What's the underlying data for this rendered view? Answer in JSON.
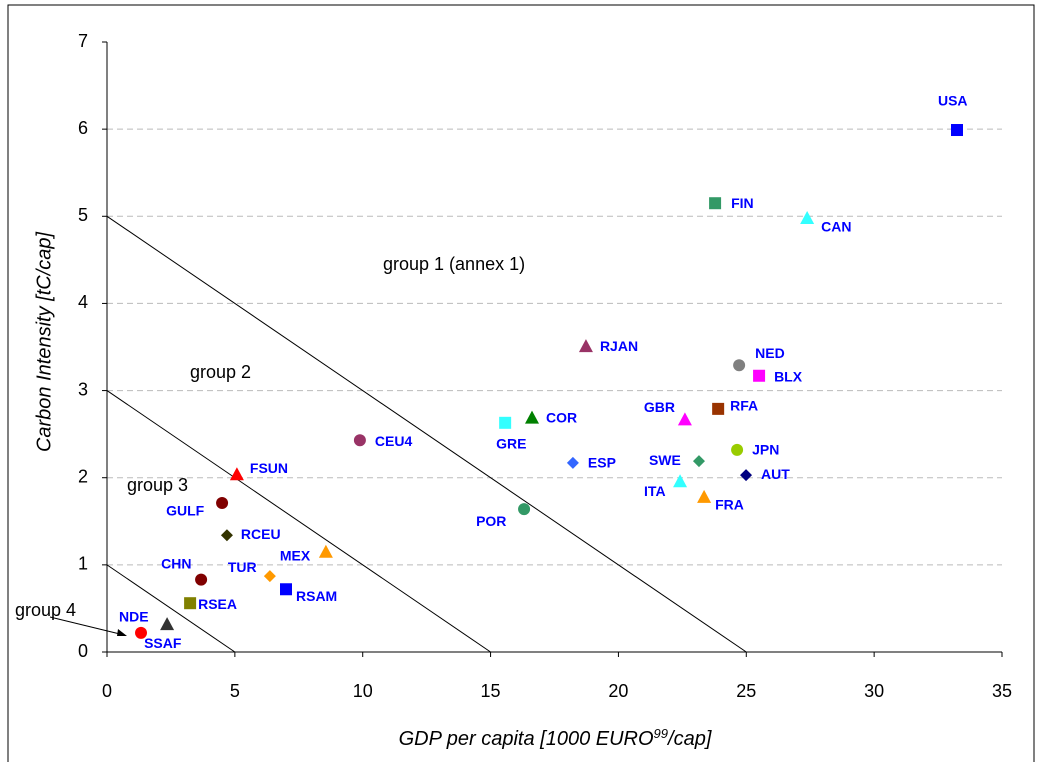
{
  "chart_data": {
    "type": "scatter",
    "ylabel": "Carbon Intensity [tC/cap]",
    "xlabel": [
      "GDP per capita [1000 EURO",
      "99",
      "/cap]"
    ],
    "xlim": [
      0,
      35
    ],
    "xticks": [
      0,
      5,
      10,
      15,
      20,
      25,
      30,
      35
    ],
    "ylim": [
      0,
      7
    ],
    "yticks": [
      0,
      1,
      2,
      3,
      4,
      5,
      6,
      7
    ],
    "grid": true,
    "annotations": [
      "group 1 (annex 1)",
      "group 2",
      "group 3",
      "group 4"
    ],
    "boundary_lines": [
      {
        "x": [
          0,
          25
        ],
        "y": [
          5,
          0
        ]
      },
      {
        "x": [
          0,
          15
        ],
        "y": [
          3,
          0
        ]
      },
      {
        "x": [
          0,
          5
        ],
        "y": [
          1,
          0
        ]
      }
    ],
    "points": [
      {
        "name": "USA",
        "x": 33.24,
        "y": 5.99,
        "marker": "square",
        "color": "#0000ff"
      },
      {
        "name": "FIN",
        "x": 23.78,
        "y": 5.15,
        "marker": "square",
        "color": "#339966"
      },
      {
        "name": "CAN",
        "x": 27.38,
        "y": 4.98,
        "marker": "triangle",
        "color": "#33ffff"
      },
      {
        "name": "RJAN",
        "x": 18.73,
        "y": 3.51,
        "marker": "triangle",
        "color": "#993366"
      },
      {
        "name": "NED",
        "x": 24.72,
        "y": 3.29,
        "marker": "circle",
        "color": "#808080"
      },
      {
        "name": "BLX",
        "x": 25.5,
        "y": 3.17,
        "marker": "square",
        "color": "#ff00ff"
      },
      {
        "name": "RFA",
        "x": 23.9,
        "y": 2.79,
        "marker": "square",
        "color": "#993300"
      },
      {
        "name": "GBR",
        "x": 22.6,
        "y": 2.67,
        "marker": "triangle",
        "color": "#ff00ff"
      },
      {
        "name": "COR",
        "x": 16.62,
        "y": 2.69,
        "marker": "triangle",
        "color": "#008000"
      },
      {
        "name": "GRE",
        "x": 15.57,
        "y": 2.63,
        "marker": "square",
        "color": "#33ffff"
      },
      {
        "name": "CEU4",
        "x": 9.89,
        "y": 2.43,
        "marker": "circle",
        "color": "#993366"
      },
      {
        "name": "ESP",
        "x": 18.22,
        "y": 2.17,
        "marker": "diamond",
        "color": "#3366ff"
      },
      {
        "name": "SWE",
        "x": 23.15,
        "y": 2.19,
        "marker": "diamond",
        "color": "#339966"
      },
      {
        "name": "JPN",
        "x": 24.64,
        "y": 2.32,
        "marker": "circle",
        "color": "#99cc00"
      },
      {
        "name": "AUT",
        "x": 24.99,
        "y": 2.03,
        "marker": "diamond",
        "color": "#000080"
      },
      {
        "name": "ITA",
        "x": 22.41,
        "y": 1.96,
        "marker": "triangle",
        "color": "#33ffff"
      },
      {
        "name": "FRA",
        "x": 23.35,
        "y": 1.78,
        "marker": "triangle",
        "color": "#ff9900"
      },
      {
        "name": "FSUN",
        "x": 5.08,
        "y": 2.04,
        "marker": "triangle",
        "color": "#ff0000"
      },
      {
        "name": "GULF",
        "x": 4.5,
        "y": 1.71,
        "marker": "circle",
        "color": "#800000"
      },
      {
        "name": "POR",
        "x": 16.31,
        "y": 1.64,
        "marker": "circle",
        "color": "#339966"
      },
      {
        "name": "RCEU",
        "x": 4.69,
        "y": 1.34,
        "marker": "diamond",
        "color": "#333300"
      },
      {
        "name": "MEX",
        "x": 8.56,
        "y": 1.15,
        "marker": "triangle",
        "color": "#ff9900"
      },
      {
        "name": "CHN",
        "x": 3.68,
        "y": 0.83,
        "marker": "circle",
        "color": "#800000"
      },
      {
        "name": "TUR",
        "x": 6.37,
        "y": 0.87,
        "marker": "diamond",
        "color": "#ff9900"
      },
      {
        "name": "RSAM",
        "x": 7.0,
        "y": 0.72,
        "marker": "square",
        "color": "#0000ff"
      },
      {
        "name": "RSEA",
        "x": 3.25,
        "y": 0.56,
        "marker": "square",
        "color": "#808000"
      },
      {
        "name": "SSAF",
        "x": 2.35,
        "y": 0.32,
        "marker": "triangle",
        "color": "#333333"
      },
      {
        "name": "NDE",
        "x": 1.33,
        "y": 0.22,
        "marker": "circle",
        "color": "#ff0000"
      }
    ]
  }
}
